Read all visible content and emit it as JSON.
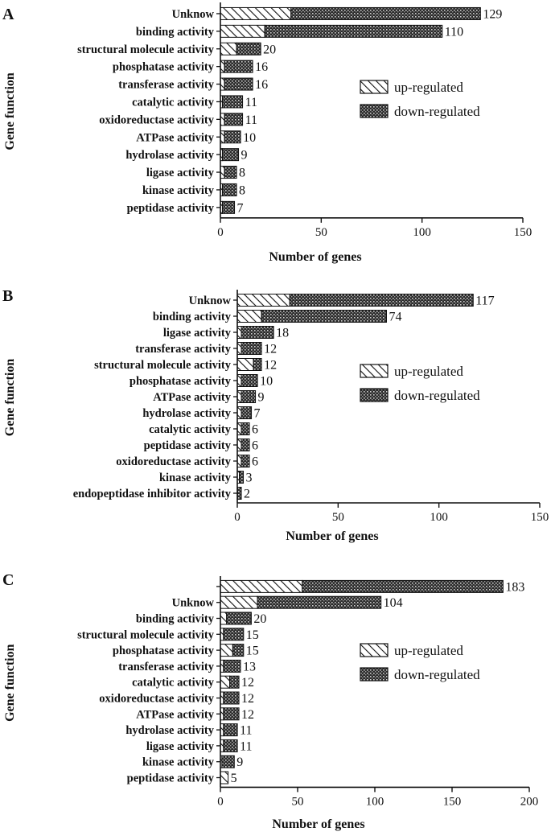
{
  "chart_data": [
    {
      "panel": "A",
      "type": "bar",
      "orientation": "horizontal",
      "stacked": true,
      "ylabel": "Gene function",
      "xlabel": "Number of genes",
      "xlim": [
        0,
        150
      ],
      "xticks": [
        "0",
        "50",
        "100",
        "150"
      ],
      "categories": [
        "Unknow",
        "binding activity",
        "structural molecule activity",
        "phosphatase activity",
        "transferase activity",
        "catalytic activity",
        "oxidoreductase activity",
        "ATPase activity",
        "hydrolase activity",
        "ligase activity",
        "kinase activity",
        "peptidase activity"
      ],
      "totals": [
        "129",
        "110",
        "20",
        "16",
        "16",
        "11",
        "11",
        "10",
        "9",
        "8",
        "8",
        "7"
      ],
      "series": [
        {
          "name": "up-regulated",
          "values": [
            35,
            22,
            8,
            2,
            2,
            1,
            2,
            2,
            1,
            2,
            1,
            1
          ]
        },
        {
          "name": "down-regulated",
          "values": [
            94,
            88,
            12,
            14,
            14,
            10,
            9,
            8,
            8,
            6,
            7,
            6
          ]
        }
      ],
      "legend": "right"
    },
    {
      "panel": "B",
      "type": "bar",
      "orientation": "horizontal",
      "stacked": true,
      "ylabel": "Gene function",
      "xlabel": "Number of genes",
      "xlim": [
        0,
        150
      ],
      "xticks": [
        "0",
        "50",
        "100",
        "150"
      ],
      "categories": [
        "Unknow",
        "binding activity",
        "ligase activity",
        "transferase activity",
        "structural molecule activity",
        "phosphatase activity",
        "ATPase activity",
        "hydrolase activity",
        "catalytic activity",
        "peptidase activity",
        "oxidoreductase activity",
        "kinase activity",
        "endopeptidase inhibitor activity"
      ],
      "totals": [
        "117",
        "74",
        "18",
        "12",
        "12",
        "10",
        "9",
        "7",
        "6",
        "6",
        "6",
        "3",
        "2"
      ],
      "series": [
        {
          "name": "up-regulated",
          "values": [
            26,
            12,
            2,
            2,
            8,
            2,
            2,
            2,
            2,
            2,
            2,
            1,
            0
          ]
        },
        {
          "name": "down-regulated",
          "values": [
            91,
            62,
            16,
            10,
            4,
            8,
            7,
            5,
            4,
            4,
            4,
            2,
            2
          ]
        }
      ],
      "legend": "right"
    },
    {
      "panel": "C",
      "type": "bar",
      "orientation": "horizontal",
      "stacked": true,
      "ylabel": "Gene function",
      "xlabel": "Number of genes",
      "xlim": [
        0,
        200
      ],
      "xticks": [
        "0",
        "50",
        "100",
        "150",
        "200"
      ],
      "categories": [
        "",
        "Unknow",
        "binding activity",
        "structural molecule activity",
        "phosphatase activity",
        "transferase activity",
        "catalytic activity",
        "oxidoreductase activity",
        "ATPase activity",
        "hydrolase activity",
        "ligase activity",
        "kinase activity",
        "peptidase activity"
      ],
      "totals": [
        "183",
        "104",
        "20",
        "15",
        "15",
        "13",
        "12",
        "12",
        "12",
        "11",
        "11",
        "9",
        "5"
      ],
      "series": [
        {
          "name": "up-regulated",
          "values": [
            53,
            24,
            4,
            2,
            8,
            2,
            6,
            2,
            2,
            2,
            2,
            1,
            5
          ]
        },
        {
          "name": "down-regulated",
          "values": [
            130,
            80,
            16,
            13,
            7,
            11,
            6,
            10,
            10,
            9,
            9,
            8,
            0
          ]
        }
      ],
      "legend": "right"
    }
  ]
}
